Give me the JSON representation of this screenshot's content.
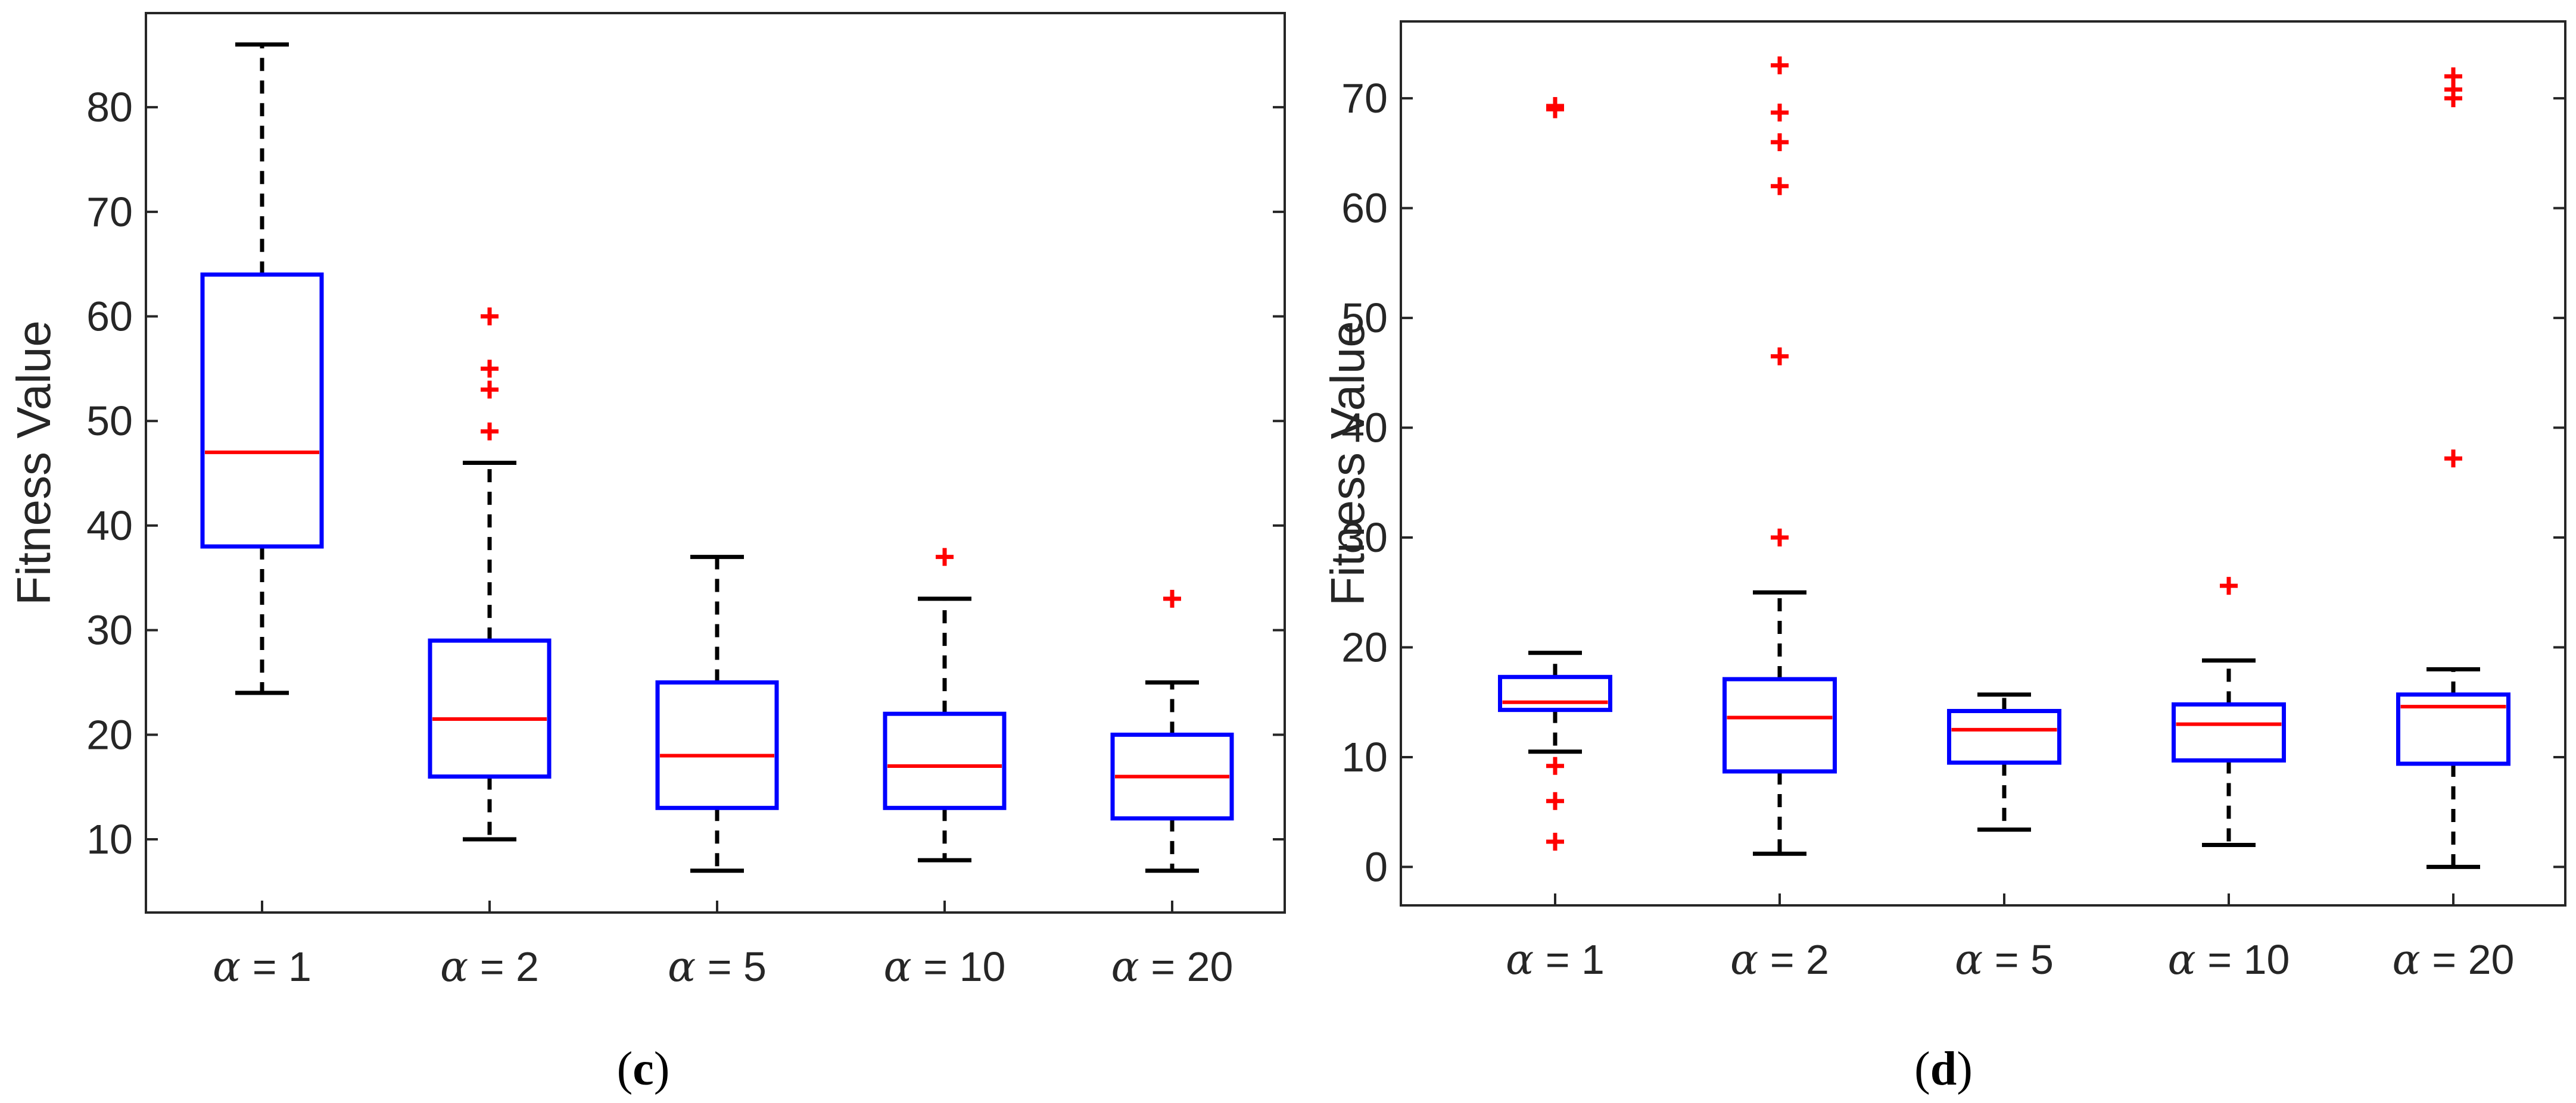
{
  "chart_data": [
    {
      "panel": "c",
      "type": "boxplot",
      "caption_letter": "c",
      "ylabel": "Fitness Value",
      "xlabel": "",
      "ylim": [
        3,
        89
      ],
      "yticks": [
        10,
        20,
        30,
        40,
        50,
        60,
        70,
        80
      ],
      "categories": [
        {
          "symbol": "α",
          "text": " = 1"
        },
        {
          "symbol": "α",
          "text": " = 2"
        },
        {
          "symbol": "α",
          "text": " = 5"
        },
        {
          "symbol": "α",
          "text": " = 10"
        },
        {
          "symbol": "α",
          "text": " = 20"
        }
      ],
      "boxes": [
        {
          "whisker_low": 24,
          "q1": 38,
          "median": 47,
          "q3": 64,
          "whisker_high": 86,
          "outliers": []
        },
        {
          "whisker_low": 10,
          "q1": 16,
          "median": 21.5,
          "q3": 29,
          "whisker_high": 46,
          "outliers": [
            49,
            53,
            55,
            60
          ]
        },
        {
          "whisker_low": 7,
          "q1": 13,
          "median": 18,
          "q3": 25,
          "whisker_high": 37,
          "outliers": []
        },
        {
          "whisker_low": 8,
          "q1": 13,
          "median": 17,
          "q3": 22,
          "whisker_high": 33,
          "outliers": [
            37
          ]
        },
        {
          "whisker_low": 7,
          "q1": 12,
          "median": 16,
          "q3": 20,
          "whisker_high": 25,
          "outliers": [
            33
          ]
        }
      ]
    },
    {
      "panel": "d",
      "type": "boxplot",
      "caption_letter": "d",
      "ylabel": "Fitness Value",
      "xlabel": "",
      "ylim": [
        -3.5,
        77
      ],
      "yticks": [
        0,
        10,
        20,
        30,
        40,
        50,
        60,
        70
      ],
      "categories": [
        {
          "symbol": "α",
          "text": " = 1"
        },
        {
          "symbol": "α",
          "text": " = 2"
        },
        {
          "symbol": "α",
          "text": " = 5"
        },
        {
          "symbol": "α",
          "text": " = 10"
        },
        {
          "symbol": "α",
          "text": " = 20"
        }
      ],
      "boxes": [
        {
          "whisker_low": 10.5,
          "q1": 14.3,
          "median": 15,
          "q3": 17.3,
          "whisker_high": 19.5,
          "outliers": [
            2.3,
            6,
            9.2,
            69,
            69.3
          ]
        },
        {
          "whisker_low": 1.2,
          "q1": 8.7,
          "median": 13.6,
          "q3": 17.1,
          "whisker_high": 25,
          "outliers": [
            30,
            46.5,
            62,
            66,
            68.7,
            73
          ]
        },
        {
          "whisker_low": 3.4,
          "q1": 9.5,
          "median": 12.5,
          "q3": 14.2,
          "whisker_high": 15.7,
          "outliers": []
        },
        {
          "whisker_low": 2,
          "q1": 9.7,
          "median": 13,
          "q3": 14.8,
          "whisker_high": 18.8,
          "outliers": [
            25.6
          ]
        },
        {
          "whisker_low": 0,
          "q1": 9.4,
          "median": 14.6,
          "q3": 15.7,
          "whisker_high": 18,
          "outliers": [
            37.2,
            70,
            70.8,
            72
          ]
        }
      ]
    }
  ],
  "colors": {
    "box": "#0000ff",
    "median": "#ff0000",
    "whisker": "#000000",
    "outlier": "#ff0000",
    "axis": "#262626"
  }
}
